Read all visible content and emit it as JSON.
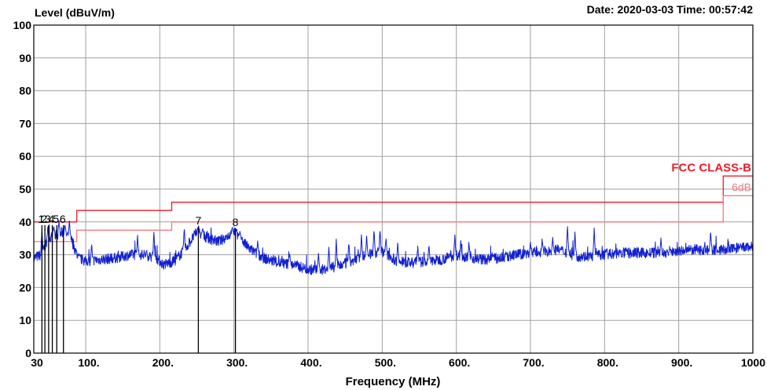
{
  "header": {
    "date_time": "Date: 2020-03-03  Time: 00:57:42"
  },
  "chart_data": {
    "type": "line",
    "ylabel": "Level (dBuV/m)",
    "xlabel": "Frequency (MHz)",
    "xlim": [
      30,
      1000
    ],
    "ylim": [
      0,
      100
    ],
    "x_ticks": [
      {
        "value": 30,
        "label": "30"
      },
      {
        "value": 100,
        "label": "100."
      },
      {
        "value": 200,
        "label": "200."
      },
      {
        "value": 300,
        "label": "300."
      },
      {
        "value": 400,
        "label": "400."
      },
      {
        "value": 500,
        "label": "500."
      },
      {
        "value": 600,
        "label": "600."
      },
      {
        "value": 700,
        "label": "700."
      },
      {
        "value": 800,
        "label": "800."
      },
      {
        "value": 900,
        "label": "900."
      },
      {
        "value": 1000,
        "label": "1000"
      }
    ],
    "y_ticks": [
      {
        "value": 0,
        "label": "0"
      },
      {
        "value": 10,
        "label": "10"
      },
      {
        "value": 20,
        "label": "20"
      },
      {
        "value": 30,
        "label": "30"
      },
      {
        "value": 40,
        "label": "40"
      },
      {
        "value": 50,
        "label": "50"
      },
      {
        "value": 60,
        "label": "60"
      },
      {
        "value": 70,
        "label": "70"
      },
      {
        "value": 80,
        "label": "80"
      },
      {
        "value": 90,
        "label": "90"
      },
      {
        "value": 100,
        "label": "100"
      }
    ],
    "grid": true,
    "limits": [
      {
        "name": "FCC CLASS-B",
        "color": "#ee1c2a",
        "points": [
          [
            30,
            40
          ],
          [
            88,
            40
          ],
          [
            88,
            43.5
          ],
          [
            216,
            43.5
          ],
          [
            216,
            46
          ],
          [
            960,
            46
          ],
          [
            960,
            54
          ],
          [
            1000,
            54
          ]
        ]
      },
      {
        "name": "6dB",
        "color": "#f27a80",
        "points": [
          [
            30,
            34
          ],
          [
            88,
            34
          ],
          [
            88,
            37.5
          ],
          [
            216,
            37.5
          ],
          [
            216,
            40
          ],
          [
            960,
            40
          ],
          [
            960,
            48
          ],
          [
            1000,
            48
          ]
        ]
      }
    ],
    "series": [
      {
        "color": "#1020d0",
        "baseline": [
          [
            30,
            29
          ],
          [
            40,
            30
          ],
          [
            50,
            35
          ],
          [
            60,
            36
          ],
          [
            70,
            37
          ],
          [
            80,
            35
          ],
          [
            90,
            29
          ],
          [
            100,
            28
          ],
          [
            120,
            28.5
          ],
          [
            140,
            29
          ],
          [
            160,
            30
          ],
          [
            180,
            30
          ],
          [
            195,
            29
          ],
          [
            205,
            27
          ],
          [
            220,
            28
          ],
          [
            235,
            32
          ],
          [
            250,
            37
          ],
          [
            265,
            35
          ],
          [
            280,
            34
          ],
          [
            300,
            37
          ],
          [
            320,
            32
          ],
          [
            340,
            29
          ],
          [
            360,
            27.5
          ],
          [
            380,
            27
          ],
          [
            400,
            25.5
          ],
          [
            420,
            25.5
          ],
          [
            440,
            26.5
          ],
          [
            460,
            28
          ],
          [
            480,
            30
          ],
          [
            500,
            31
          ],
          [
            520,
            28
          ],
          [
            540,
            27.5
          ],
          [
            560,
            28
          ],
          [
            580,
            28.5
          ],
          [
            600,
            30
          ],
          [
            620,
            29
          ],
          [
            640,
            28.5
          ],
          [
            660,
            29
          ],
          [
            680,
            30
          ],
          [
            700,
            30.5
          ],
          [
            720,
            31
          ],
          [
            740,
            31.5
          ],
          [
            760,
            29.5
          ],
          [
            780,
            29.5
          ],
          [
            800,
            30
          ],
          [
            820,
            30.5
          ],
          [
            840,
            30.5
          ],
          [
            860,
            30.5
          ],
          [
            880,
            30.5
          ],
          [
            900,
            31
          ],
          [
            920,
            31.5
          ],
          [
            940,
            31.5
          ],
          [
            960,
            31.5
          ],
          [
            980,
            32
          ],
          [
            1000,
            32.5
          ]
        ],
        "spikes": [
          [
            41,
            38
          ],
          [
            49,
            39
          ],
          [
            57,
            39
          ],
          [
            64,
            40
          ],
          [
            72,
            39
          ],
          [
            78,
            40
          ],
          [
            108,
            33
          ],
          [
            170,
            36
          ],
          [
            192,
            37
          ],
          [
            233,
            38
          ],
          [
            252,
            38.5
          ],
          [
            258,
            38
          ],
          [
            298,
            38
          ],
          [
            303,
            38
          ],
          [
            308,
            37
          ],
          [
            332,
            34
          ],
          [
            375,
            31
          ],
          [
            414,
            30
          ],
          [
            428,
            32
          ],
          [
            438,
            35
          ],
          [
            455,
            34
          ],
          [
            472,
            36
          ],
          [
            479,
            36
          ],
          [
            489,
            38
          ],
          [
            497,
            38
          ],
          [
            505,
            35
          ],
          [
            521,
            34
          ],
          [
            548,
            33
          ],
          [
            563,
            33
          ],
          [
            598,
            36
          ],
          [
            606,
            34
          ],
          [
            617,
            34
          ],
          [
            650,
            30
          ],
          [
            667,
            31
          ],
          [
            700,
            34
          ],
          [
            716,
            34
          ],
          [
            730,
            35
          ],
          [
            750,
            39
          ],
          [
            760,
            37
          ],
          [
            786,
            38
          ],
          [
            803,
            32
          ],
          [
            876,
            35
          ],
          [
            943,
            37
          ]
        ]
      }
    ],
    "markers": [
      {
        "label": "1",
        "x": 41,
        "y": 39
      },
      {
        "label": "2",
        "x": 45,
        "y": 39
      },
      {
        "label": "3",
        "x": 50,
        "y": 39
      },
      {
        "label": "4",
        "x": 55,
        "y": 39
      },
      {
        "label": "5",
        "x": 61,
        "y": 39
      },
      {
        "label": "6",
        "x": 70,
        "y": 39
      },
      {
        "label": "7",
        "x": 252,
        "y": 38.5
      },
      {
        "label": "8",
        "x": 302,
        "y": 38
      }
    ]
  }
}
